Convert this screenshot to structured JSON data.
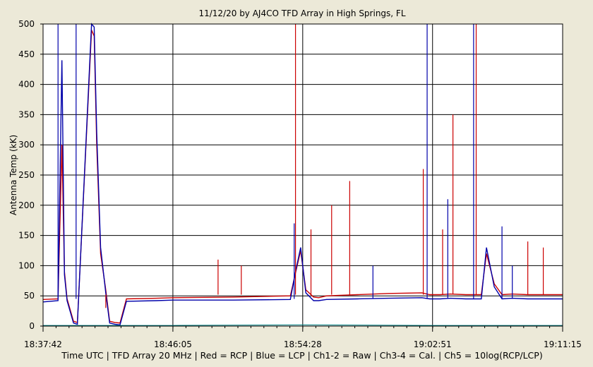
{
  "chart_data": {
    "type": "line",
    "title": "11/12/20  by  AJ4CO TFD Array  in  High Springs, FL",
    "ylabel": "Antenna Temp (kK)",
    "xlabel": "Time UTC | TFD Array 20 MHz | Red = RCP | Blue = LCP | Ch1-2 = Raw | Ch3-4 = Cal. | Ch5 = 10log(RCP/LCP)",
    "ylim": [
      0,
      500
    ],
    "yticks": [
      0,
      50,
      100,
      150,
      200,
      250,
      300,
      350,
      400,
      450,
      500
    ],
    "xlim": [
      "18:37:42",
      "19:11:15"
    ],
    "xticks": [
      "18:37:42",
      "18:46:05",
      "18:54:28",
      "19:02:51",
      "19:11:15"
    ],
    "grid": true,
    "colors": {
      "rcp": "#cc0000",
      "lcp": "#0000aa",
      "ratio": "#008080",
      "plot_bg": "#ffffff",
      "frame_bg": "#ece9d8"
    },
    "series": [
      {
        "key": "rcp",
        "x": [
          "18:37:42",
          "18:38:40",
          "18:38:55",
          "18:39:05",
          "18:39:15",
          "18:39:40",
          "18:39:55",
          "18:40:50",
          "18:41:00",
          "18:41:10",
          "18:41:25",
          "18:41:45",
          "18:42:00",
          "18:42:20",
          "18:42:40",
          "18:43:05",
          "18:45:00",
          "18:46:05",
          "18:50:00",
          "18:53:40",
          "18:54:00",
          "18:54:20",
          "18:54:40",
          "18:55:10",
          "18:55:30",
          "18:56:00",
          "18:58:00",
          "19:00:00",
          "19:02:10",
          "19:02:40",
          "19:03:20",
          "19:04:00",
          "19:05:00",
          "19:06:00",
          "19:06:20",
          "19:06:50",
          "19:07:20",
          "19:08:00",
          "19:09:00",
          "19:11:15"
        ],
        "y": [
          44,
          45,
          300,
          90,
          45,
          8,
          6,
          490,
          480,
          300,
          120,
          60,
          8,
          6,
          5,
          45,
          46,
          47,
          48,
          50,
          88,
          125,
          60,
          48,
          47,
          50,
          52,
          54,
          55,
          52,
          52,
          53,
          52,
          52,
          120,
          70,
          52,
          53,
          52,
          52
        ]
      },
      {
        "key": "lcp",
        "x": [
          "18:37:42",
          "18:38:40",
          "18:38:55",
          "18:39:05",
          "18:39:15",
          "18:39:40",
          "18:39:55",
          "18:40:50",
          "18:41:00",
          "18:41:10",
          "18:41:25",
          "18:41:45",
          "18:42:00",
          "18:42:20",
          "18:42:40",
          "18:43:05",
          "18:45:00",
          "18:46:05",
          "18:50:00",
          "18:53:40",
          "18:54:00",
          "18:54:20",
          "18:54:40",
          "18:55:10",
          "18:55:30",
          "18:56:00",
          "18:58:00",
          "19:00:00",
          "19:02:10",
          "19:02:40",
          "19:03:20",
          "19:04:00",
          "19:05:00",
          "19:06:00",
          "19:06:20",
          "19:06:50",
          "19:07:20",
          "19:08:00",
          "19:09:00",
          "19:11:15"
        ],
        "y": [
          40,
          42,
          440,
          85,
          42,
          5,
          3,
          500,
          495,
          320,
          130,
          55,
          5,
          3,
          2,
          41,
          42,
          43,
          43,
          44,
          90,
          130,
          55,
          42,
          42,
          44,
          45,
          46,
          47,
          45,
          45,
          46,
          45,
          45,
          130,
          65,
          45,
          46,
          45,
          45
        ]
      },
      {
        "key": "ratio",
        "x": [
          "18:37:42",
          "18:46:05",
          "18:54:28",
          "19:02:51",
          "19:11:15"
        ],
        "y": [
          1,
          1,
          2,
          1,
          1
        ]
      }
    ],
    "spikes": {
      "rcp": [
        {
          "x": "18:41:45",
          "y": 30
        },
        {
          "x": "18:49:00",
          "y": 110
        },
        {
          "x": "18:50:30",
          "y": 100
        },
        {
          "x": "18:54:00",
          "y": 500
        },
        {
          "x": "18:55:00",
          "y": 160
        },
        {
          "x": "18:56:20",
          "y": 200
        },
        {
          "x": "18:57:30",
          "y": 240
        },
        {
          "x": "19:02:15",
          "y": 260
        },
        {
          "x": "19:03:30",
          "y": 160
        },
        {
          "x": "19:04:10",
          "y": 350
        },
        {
          "x": "19:05:40",
          "y": 500
        },
        {
          "x": "19:09:00",
          "y": 140
        },
        {
          "x": "19:10:00",
          "y": 130
        }
      ],
      "lcp": [
        {
          "x": "18:38:40",
          "y": 500
        },
        {
          "x": "18:39:50",
          "y": 500
        },
        {
          "x": "18:53:55",
          "y": 170
        },
        {
          "x": "18:59:00",
          "y": 100
        },
        {
          "x": "19:02:30",
          "y": 500
        },
        {
          "x": "19:03:50",
          "y": 210
        },
        {
          "x": "19:05:30",
          "y": 500
        },
        {
          "x": "19:07:20",
          "y": 165
        },
        {
          "x": "19:08:00",
          "y": 100
        }
      ]
    }
  }
}
